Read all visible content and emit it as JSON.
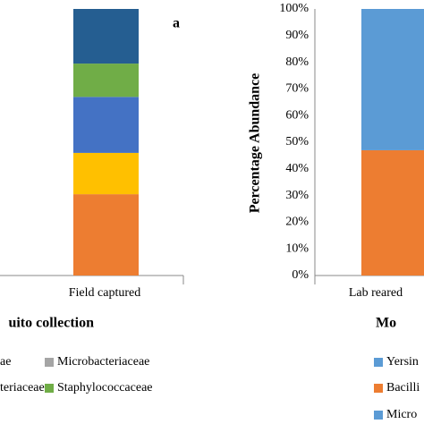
{
  "chart_data": [
    {
      "type": "bar",
      "panel_label": "a",
      "x_axis_label": "uito collection",
      "categories": [
        "Field captured"
      ],
      "series": [
        {
          "name": null,
          "color": "#ed7d31",
          "values": [
            30.5
          ]
        },
        {
          "name": null,
          "color": "#ffc000",
          "values": [
            15.5
          ]
        },
        {
          "name": null,
          "color": "#4472c4",
          "values": [
            21
          ]
        },
        {
          "name": "Staphylococcaceae",
          "color": "#70ad47",
          "values": [
            12.5
          ]
        },
        {
          "name": null,
          "color": "#255e91",
          "values": [
            20.5
          ]
        },
        {
          "name": "Microbacteriaceae",
          "color": "#a5a5a5",
          "values": [
            0
          ]
        }
      ],
      "legend_fragments": [
        "ae",
        "teriaceae"
      ],
      "ylim": [
        0,
        100
      ]
    },
    {
      "type": "bar",
      "x_axis_label": "Mo",
      "y_axis_label": "Percentage Abundance",
      "categories": [
        "Lab reared"
      ],
      "series": [
        {
          "name": "Bacilli",
          "color": "#ed7d31",
          "values": [
            47
          ]
        },
        {
          "name": "Yersin",
          "color": "#5b9bd5",
          "values": [
            53
          ]
        },
        {
          "name": "Micro",
          "color": "#5b9bd5",
          "values": [
            0
          ]
        }
      ],
      "ylim": [
        0,
        100
      ],
      "yticks": [
        {
          "value": 0,
          "label": "0%"
        },
        {
          "value": 10,
          "label": "10%"
        },
        {
          "value": 20,
          "label": "20%"
        },
        {
          "value": 30,
          "label": "30%"
        },
        {
          "value": 40,
          "label": "40%"
        },
        {
          "value": 50,
          "label": "50%"
        },
        {
          "value": 60,
          "label": "60%"
        },
        {
          "value": 70,
          "label": "70%"
        },
        {
          "value": 80,
          "label": "80%"
        },
        {
          "value": 90,
          "label": "90%"
        },
        {
          "value": 100,
          "label": "100%"
        }
      ]
    }
  ]
}
